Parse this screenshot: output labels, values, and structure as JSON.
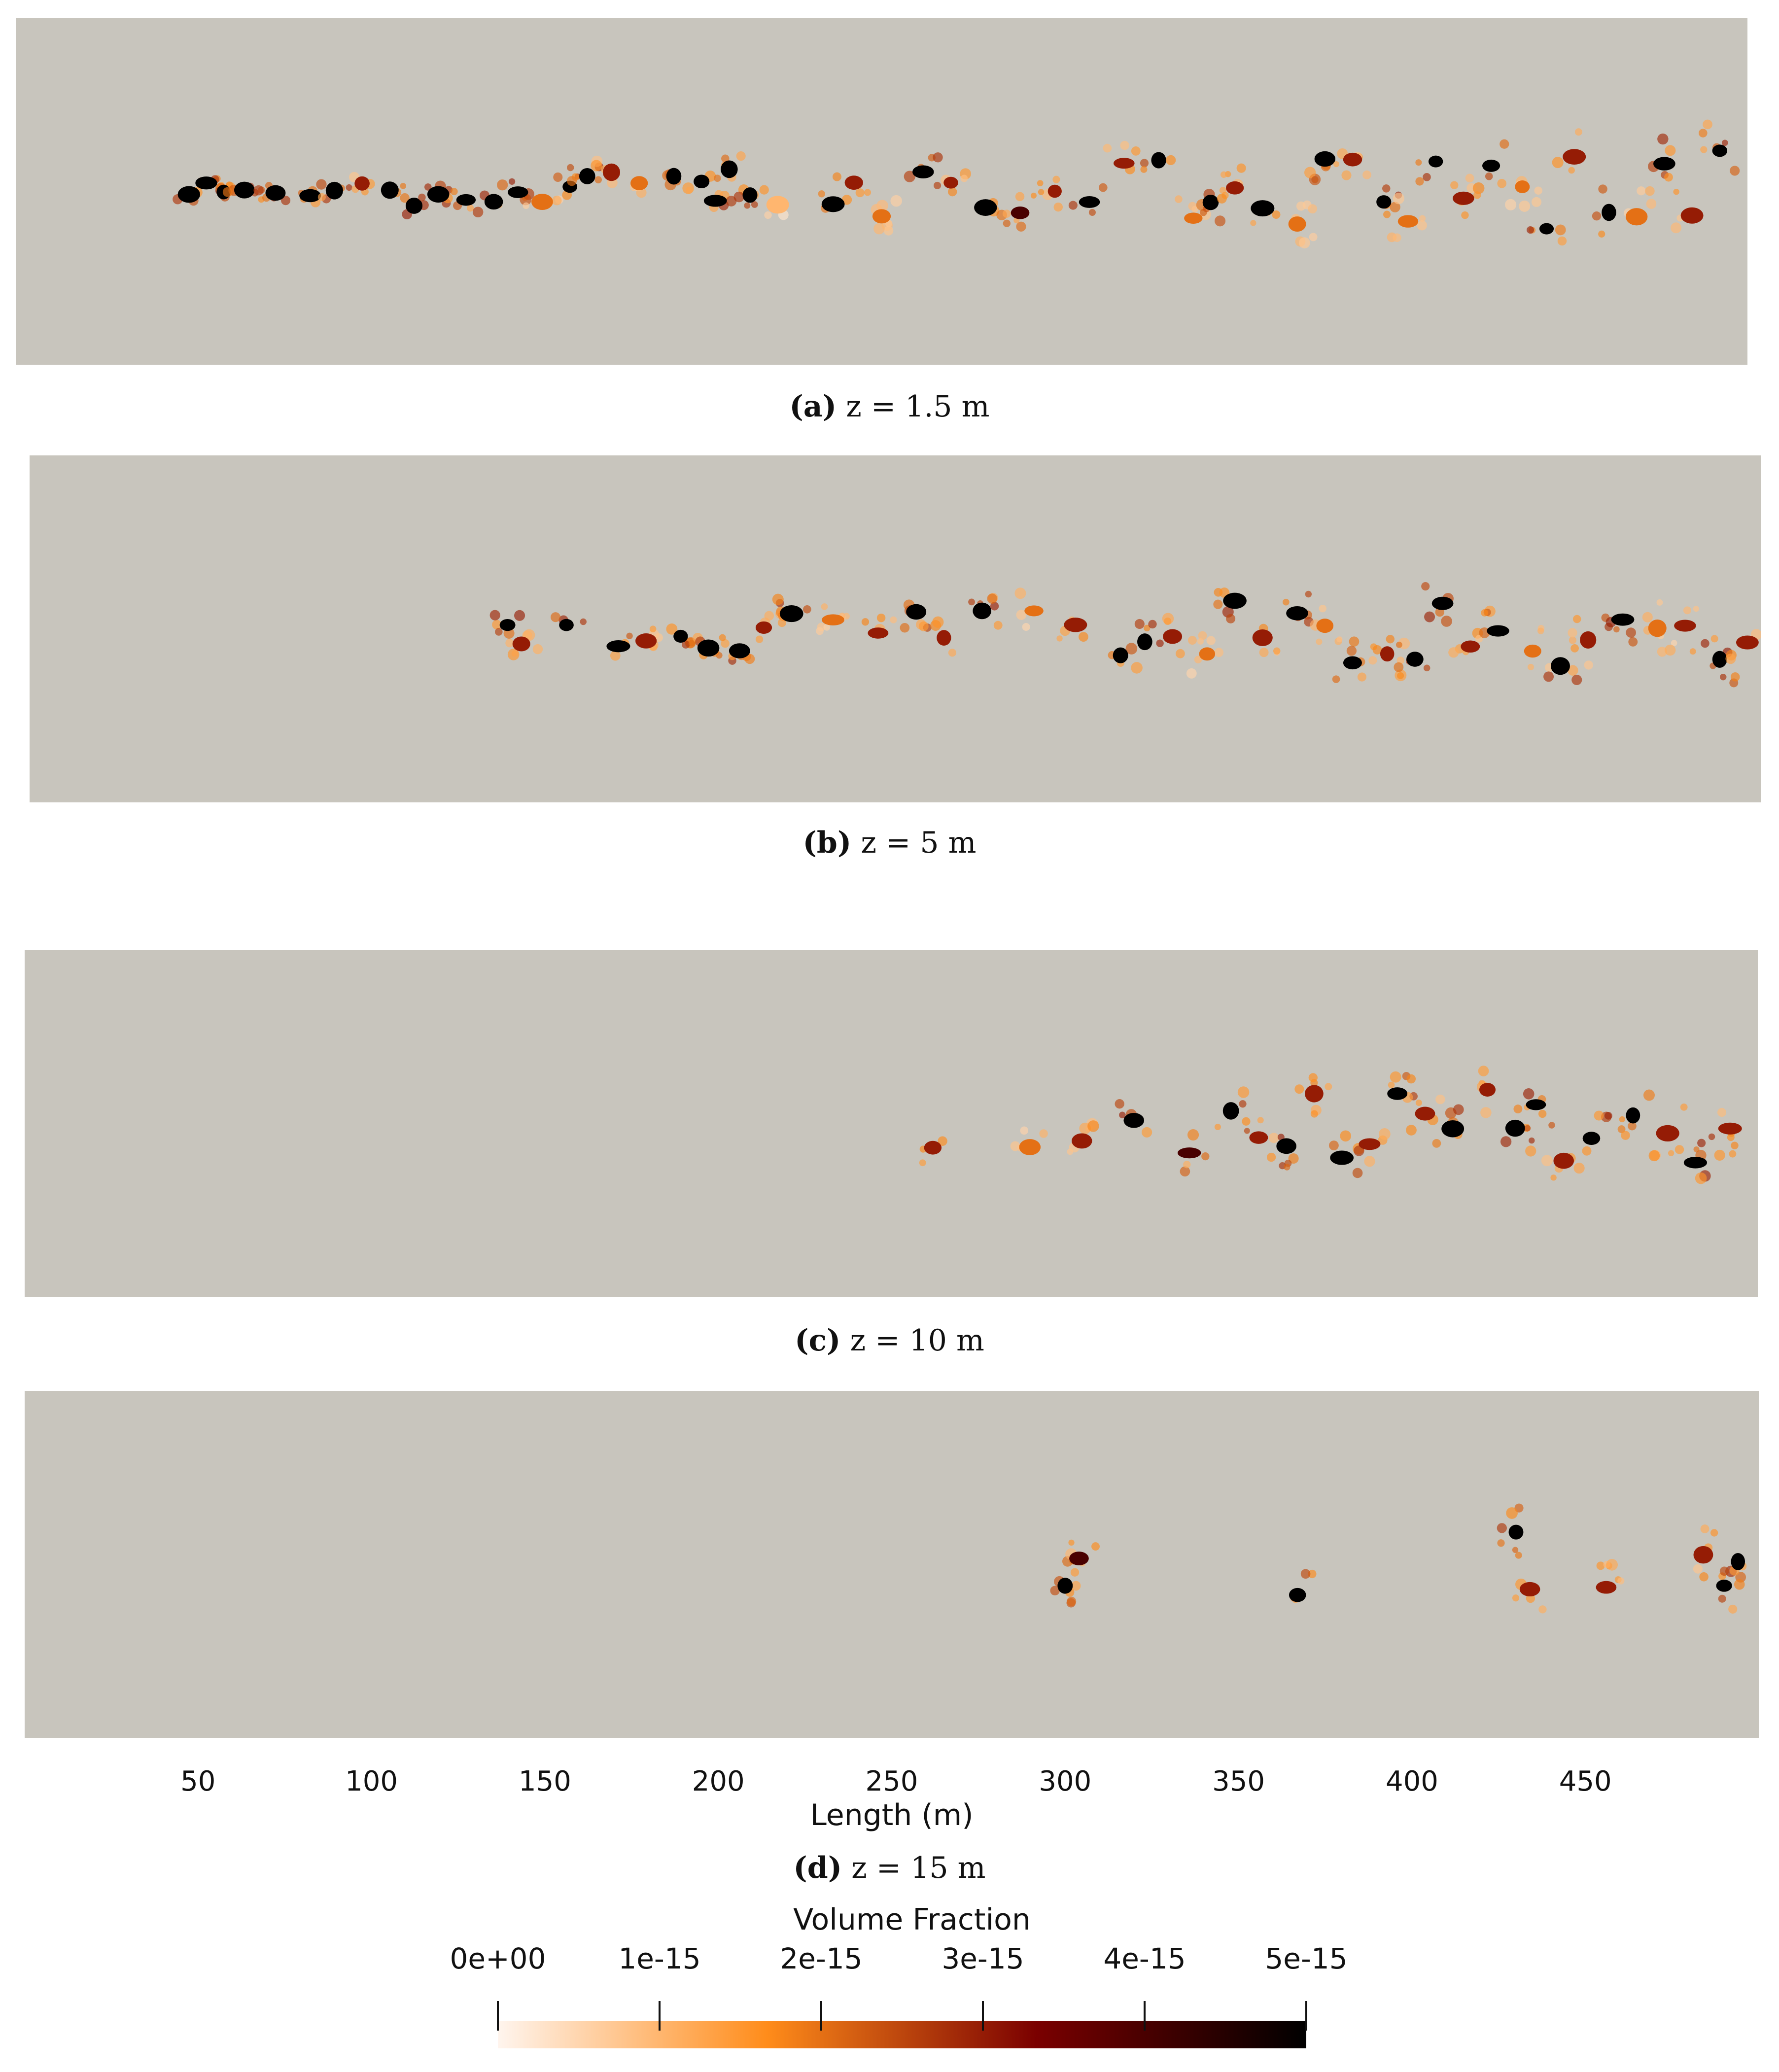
{
  "chart_data": [
    {
      "type": "scatter",
      "panel": "a",
      "caption_letter": "(a)",
      "caption_text": "z = 1.5 m",
      "xlim": [
        0,
        500
      ],
      "values": [
        {
          "x": 50,
          "v": 5e-15
        },
        {
          "x": 55,
          "v": 5e-15
        },
        {
          "x": 60,
          "v": 5e-15
        },
        {
          "x": 66,
          "v": 5e-15
        },
        {
          "x": 75,
          "v": 5e-15
        },
        {
          "x": 85,
          "v": 5e-15
        },
        {
          "x": 92,
          "v": 5e-15
        },
        {
          "x": 100,
          "v": 3e-15
        },
        {
          "x": 108,
          "v": 5e-15
        },
        {
          "x": 115,
          "v": 5e-15
        },
        {
          "x": 122,
          "v": 5e-15
        },
        {
          "x": 130,
          "v": 5e-15
        },
        {
          "x": 138,
          "v": 5e-15
        },
        {
          "x": 145,
          "v": 5e-15
        },
        {
          "x": 152,
          "v": 2e-15
        },
        {
          "x": 160,
          "v": 5e-15
        },
        {
          "x": 165,
          "v": 5e-15
        },
        {
          "x": 172,
          "v": 3e-15
        },
        {
          "x": 180,
          "v": 2e-15
        },
        {
          "x": 190,
          "v": 5e-15
        },
        {
          "x": 198,
          "v": 5e-15
        },
        {
          "x": 202,
          "v": 5e-15
        },
        {
          "x": 206,
          "v": 5e-15
        },
        {
          "x": 212,
          "v": 5e-15
        },
        {
          "x": 220,
          "v": 1e-15
        },
        {
          "x": 236,
          "v": 5e-15
        },
        {
          "x": 242,
          "v": 3e-15
        },
        {
          "x": 250,
          "v": 2e-15
        },
        {
          "x": 262,
          "v": 5e-15
        },
        {
          "x": 270,
          "v": 3e-15
        },
        {
          "x": 280,
          "v": 5e-15
        },
        {
          "x": 290,
          "v": 4e-15
        },
        {
          "x": 300,
          "v": 3e-15
        },
        {
          "x": 310,
          "v": 5e-15
        },
        {
          "x": 320,
          "v": 3e-15
        },
        {
          "x": 330,
          "v": 5e-15
        },
        {
          "x": 340,
          "v": 2e-15
        },
        {
          "x": 345,
          "v": 5e-15
        },
        {
          "x": 352,
          "v": 3e-15
        },
        {
          "x": 360,
          "v": 5e-15
        },
        {
          "x": 370,
          "v": 2e-15
        },
        {
          "x": 378,
          "v": 5e-15
        },
        {
          "x": 386,
          "v": 3e-15
        },
        {
          "x": 395,
          "v": 5e-15
        },
        {
          "x": 402,
          "v": 2e-15
        },
        {
          "x": 410,
          "v": 5e-15
        },
        {
          "x": 418,
          "v": 3e-15
        },
        {
          "x": 426,
          "v": 5e-15
        },
        {
          "x": 435,
          "v": 2e-15
        },
        {
          "x": 442,
          "v": 5e-15
        },
        {
          "x": 450,
          "v": 3e-15
        },
        {
          "x": 460,
          "v": 5e-15
        },
        {
          "x": 468,
          "v": 2e-15
        },
        {
          "x": 476,
          "v": 5e-15
        },
        {
          "x": 484,
          "v": 3e-15
        },
        {
          "x": 492,
          "v": 5e-15
        }
      ]
    },
    {
      "type": "scatter",
      "panel": "b",
      "caption_letter": "(b)",
      "caption_text": "z = 5 m",
      "xlim": [
        0,
        500
      ],
      "values": [
        {
          "x": 138,
          "v": 5e-15
        },
        {
          "x": 142,
          "v": 3e-15
        },
        {
          "x": 155,
          "v": 5e-15
        },
        {
          "x": 170,
          "v": 5e-15
        },
        {
          "x": 178,
          "v": 3e-15
        },
        {
          "x": 188,
          "v": 5e-15
        },
        {
          "x": 196,
          "v": 5e-15
        },
        {
          "x": 205,
          "v": 5e-15
        },
        {
          "x": 212,
          "v": 3e-15
        },
        {
          "x": 220,
          "v": 5e-15
        },
        {
          "x": 232,
          "v": 2e-15
        },
        {
          "x": 245,
          "v": 3e-15
        },
        {
          "x": 256,
          "v": 5e-15
        },
        {
          "x": 264,
          "v": 3e-15
        },
        {
          "x": 275,
          "v": 5e-15
        },
        {
          "x": 290,
          "v": 2e-15
        },
        {
          "x": 302,
          "v": 3e-15
        },
        {
          "x": 315,
          "v": 5e-15
        },
        {
          "x": 322,
          "v": 5e-15
        },
        {
          "x": 330,
          "v": 3e-15
        },
        {
          "x": 340,
          "v": 2e-15
        },
        {
          "x": 348,
          "v": 5e-15
        },
        {
          "x": 356,
          "v": 3e-15
        },
        {
          "x": 366,
          "v": 5e-15
        },
        {
          "x": 374,
          "v": 2e-15
        },
        {
          "x": 382,
          "v": 5e-15
        },
        {
          "x": 392,
          "v": 3e-15
        },
        {
          "x": 400,
          "v": 5e-15
        },
        {
          "x": 408,
          "v": 5e-15
        },
        {
          "x": 416,
          "v": 3e-15
        },
        {
          "x": 424,
          "v": 5e-15
        },
        {
          "x": 434,
          "v": 2e-15
        },
        {
          "x": 442,
          "v": 5e-15
        },
        {
          "x": 450,
          "v": 3e-15
        },
        {
          "x": 460,
          "v": 5e-15
        },
        {
          "x": 470,
          "v": 2e-15
        },
        {
          "x": 478,
          "v": 3e-15
        },
        {
          "x": 488,
          "v": 5e-15
        },
        {
          "x": 496,
          "v": 3e-15
        }
      ]
    },
    {
      "type": "scatter",
      "panel": "c",
      "caption_letter": "(c)",
      "caption_text": "z = 10 m",
      "xlim": [
        0,
        500
      ],
      "values": [
        {
          "x": 262,
          "v": 3e-15
        },
        {
          "x": 290,
          "v": 2e-15
        },
        {
          "x": 305,
          "v": 3e-15
        },
        {
          "x": 320,
          "v": 5e-15
        },
        {
          "x": 336,
          "v": 4e-15
        },
        {
          "x": 348,
          "v": 5e-15
        },
        {
          "x": 356,
          "v": 3e-15
        },
        {
          "x": 364,
          "v": 5e-15
        },
        {
          "x": 372,
          "v": 3e-15
        },
        {
          "x": 380,
          "v": 5e-15
        },
        {
          "x": 388,
          "v": 3e-15
        },
        {
          "x": 396,
          "v": 5e-15
        },
        {
          "x": 404,
          "v": 3e-15
        },
        {
          "x": 412,
          "v": 5e-15
        },
        {
          "x": 422,
          "v": 3e-15
        },
        {
          "x": 430,
          "v": 5e-15
        },
        {
          "x": 436,
          "v": 5e-15
        },
        {
          "x": 444,
          "v": 3e-15
        },
        {
          "x": 452,
          "v": 5e-15
        },
        {
          "x": 464,
          "v": 5e-15
        },
        {
          "x": 474,
          "v": 3e-15
        },
        {
          "x": 482,
          "v": 5e-15
        },
        {
          "x": 492,
          "v": 3e-15
        }
      ]
    },
    {
      "type": "scatter",
      "panel": "d",
      "caption_letter": "(d)",
      "caption_text": "z = 15 m",
      "xlim": [
        0,
        500
      ],
      "xlabel": "Length (m)",
      "xticks": [
        50,
        100,
        150,
        200,
        250,
        300,
        350,
        400,
        450
      ],
      "values": [
        {
          "x": 300,
          "v": 5e-15
        },
        {
          "x": 304,
          "v": 4e-15
        },
        {
          "x": 367,
          "v": 5e-15
        },
        {
          "x": 430,
          "v": 5e-15
        },
        {
          "x": 434,
          "v": 3e-15
        },
        {
          "x": 456,
          "v": 3e-15
        },
        {
          "x": 484,
          "v": 3e-15
        },
        {
          "x": 490,
          "v": 5e-15
        },
        {
          "x": 494,
          "v": 5e-15
        }
      ]
    }
  ],
  "colorbar": {
    "title": "Volume Fraction",
    "ticks": [
      "0e+00",
      "1e-15",
      "2e-15",
      "3e-15",
      "4e-15",
      "5e-15"
    ],
    "range": [
      0,
      5e-15
    ],
    "colors": [
      "#fff5ee",
      "#ff8c1a",
      "#7a0000",
      "#000000"
    ]
  },
  "background_color": "#c8c5bd"
}
